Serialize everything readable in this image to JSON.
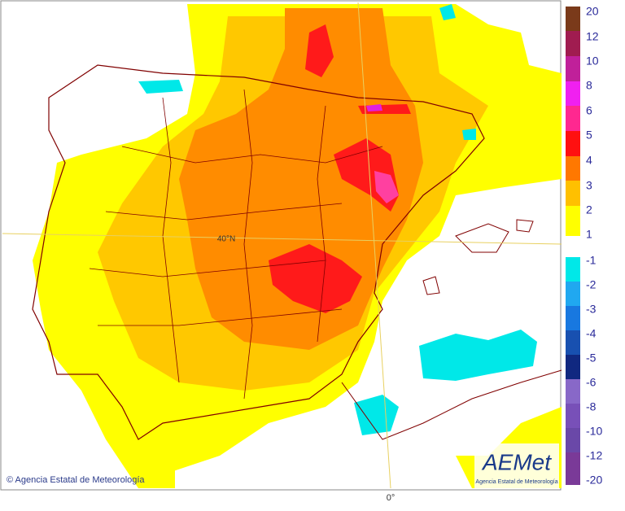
{
  "map": {
    "latitude_label": "40°N",
    "longitude_label": "0°",
    "copyright": "© Agencia Estatal de Meteorología",
    "logo": {
      "name": "AEMet",
      "subtitle": "Agencia Estatal de Meteorología"
    },
    "legend_positive": [
      "20",
      "12",
      "10",
      "8",
      "6",
      "5",
      "4",
      "3",
      "2",
      "1"
    ],
    "legend_negative": [
      "-1",
      "-2",
      "-3",
      "-4",
      "-5",
      "-6",
      "-8",
      "-10",
      "-12",
      "-20"
    ]
  }
}
